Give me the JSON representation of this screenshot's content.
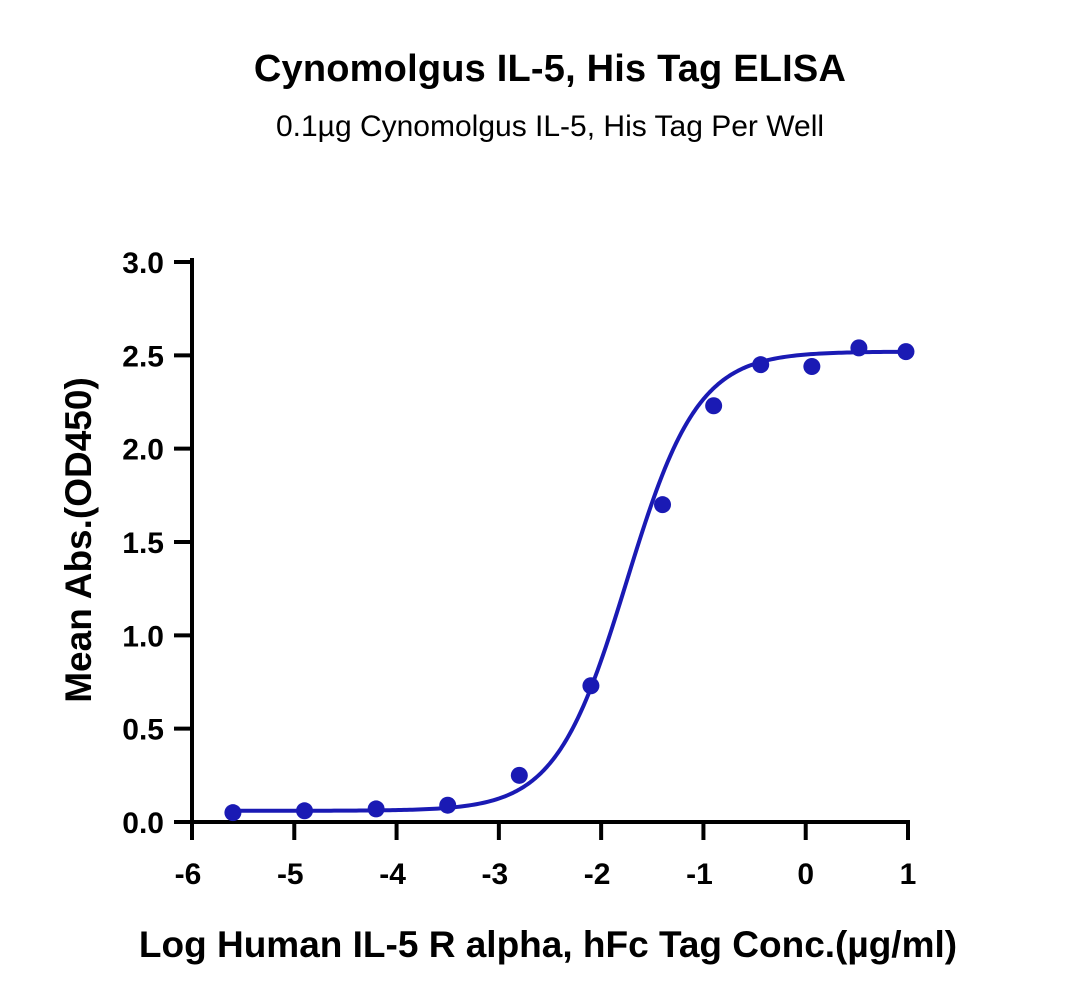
{
  "chart_data": {
    "type": "scatter",
    "title": "Cynomolgus IL-5, His Tag ELISA",
    "subtitle": "0.1µg Cynomolgus IL-5, His Tag Per Well",
    "xlabel": "Log Human IL-5 R alpha, hFc Tag Conc.(µg/ml)",
    "ylabel": "Mean Abs.(OD450)",
    "xlim": [
      -6,
      1
    ],
    "ylim": [
      0,
      3.0
    ],
    "xticks": [
      "-6",
      "-5",
      "-4",
      "-3",
      "-2",
      "-1",
      "0",
      "1"
    ],
    "yticks": [
      "0.0",
      "0.5",
      "1.0",
      "1.5",
      "2.0",
      "2.5",
      "3.0"
    ],
    "grid": false,
    "legend": "none",
    "color": "#1a1ab4",
    "series": [
      {
        "x": [
          -5.6,
          -4.9,
          -4.2,
          -3.5,
          -2.8,
          -2.1,
          -1.4,
          -0.9,
          -0.44,
          0.06,
          0.52,
          0.98
        ],
        "values": [
          0.05,
          0.06,
          0.07,
          0.09,
          0.25,
          0.73,
          1.7,
          2.23,
          2.45,
          2.44,
          2.54,
          2.52
        ]
      }
    ],
    "fit_curve": {
      "model": "4PL",
      "bottom": 0.06,
      "top": 2.52,
      "logEC50": -1.75,
      "hill": 1.25
    }
  }
}
